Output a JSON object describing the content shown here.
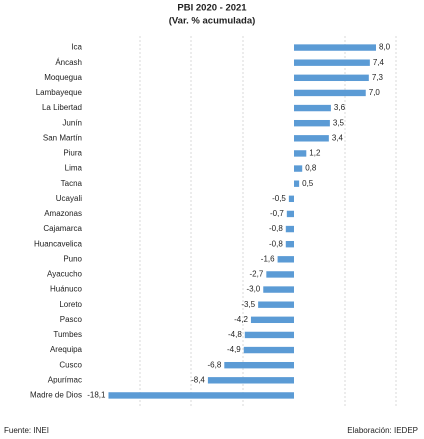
{
  "chart_data": {
    "type": "bar",
    "orientation": "horizontal",
    "title": "PBI 2020 - 2021",
    "subtitle": "(Var. % acumulada)",
    "categories": [
      "Ica",
      "Áncash",
      "Moquegua",
      "Lambayeque",
      "La Libertad",
      "Junín",
      "San Martín",
      "Piura",
      "Lima",
      "Tacna",
      "Ucayali",
      "Amazonas",
      "Cajamarca",
      "Huancavelica",
      "Puno",
      "Ayacucho",
      "Huánuco",
      "Loreto",
      "Pasco",
      "Tumbes",
      "Arequipa",
      "Cusco",
      "Apurímac",
      "Madre de Dios"
    ],
    "values": [
      8.0,
      7.4,
      7.3,
      7.0,
      3.6,
      3.5,
      3.4,
      1.2,
      0.8,
      0.5,
      -0.5,
      -0.7,
      -0.8,
      -0.8,
      -1.6,
      -2.7,
      -3.0,
      -3.5,
      -4.2,
      -4.8,
      -4.9,
      -6.8,
      -8.4,
      -18.1
    ],
    "value_labels": [
      "8,0",
      "7,4",
      "7,3",
      "7,0",
      "3,6",
      "3,5",
      "3,4",
      "1,2",
      "0,8",
      "0,5",
      "-0,5",
      "-0,7",
      "-0,8",
      "-0,8",
      "-1,6",
      "-2,7",
      "-3,0",
      "-3,5",
      "-4,2",
      "-4,8",
      "-4,9",
      "-6,8",
      "-8,4",
      "-18,1"
    ],
    "color": "#5b9bd5",
    "xlim": [
      -20,
      10
    ],
    "source": "Fuente: INEI",
    "credit": "Elaboración: IEDEP"
  }
}
